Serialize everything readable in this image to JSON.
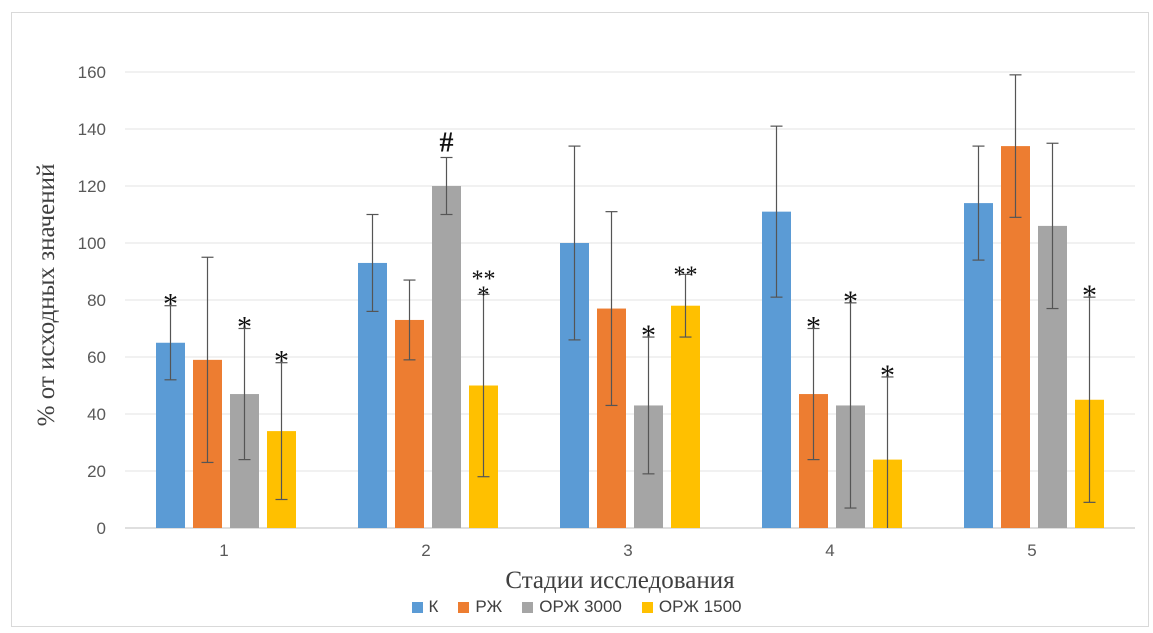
{
  "chart_data": {
    "type": "bar",
    "xlabel": "Стадии исследования",
    "ylabel": "% от исходных значений",
    "ylim": [
      0,
      160
    ],
    "yticks": [
      0,
      20,
      40,
      60,
      80,
      100,
      120,
      140,
      160
    ],
    "grid": true,
    "legend_position": "bottom",
    "categories": [
      "1",
      "2",
      "3",
      "4",
      "5"
    ],
    "series": [
      {
        "name": "К",
        "color": "#5b9bd5",
        "values": [
          65,
          93,
          100,
          111,
          114
        ],
        "errors": [
          13,
          17,
          34,
          30,
          20
        ],
        "marks": [
          "*",
          "",
          "",
          "",
          ""
        ]
      },
      {
        "name": "РЖ",
        "color": "#ed7d31",
        "values": [
          59,
          73,
          77,
          47,
          134
        ],
        "errors": [
          36,
          14,
          34,
          23,
          25
        ],
        "marks": [
          "",
          "",
          "",
          "*",
          ""
        ]
      },
      {
        "name": "ОРЖ 3000",
        "color": "#a5a5a5",
        "values": [
          47,
          120,
          43,
          43,
          106
        ],
        "errors": [
          23,
          10,
          24,
          36,
          29
        ],
        "marks": [
          "*",
          "#",
          "*",
          "*",
          ""
        ]
      },
      {
        "name": "ОРЖ 1500",
        "color": "#ffc000",
        "values": [
          34,
          50,
          78,
          24,
          45
        ],
        "errors": [
          24,
          32,
          11,
          29,
          36
        ],
        "marks": [
          "*",
          "**\n*",
          "**",
          "*",
          "*"
        ]
      }
    ]
  }
}
